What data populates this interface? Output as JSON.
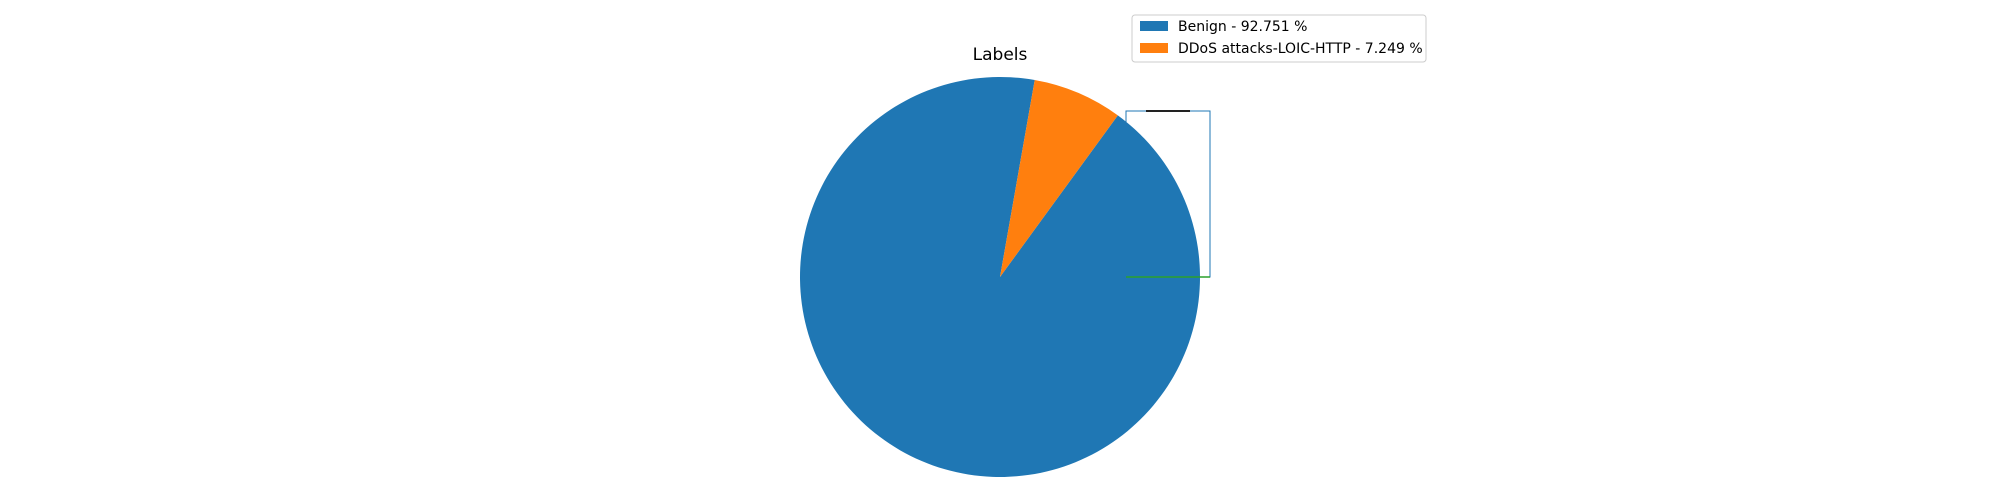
{
  "chart_data": {
    "type": "pie",
    "title": "Labels",
    "slices": [
      {
        "label": "Benign",
        "value": 92.751,
        "color": "#1f77b4"
      },
      {
        "label": "DDoS attacks-LOIC-HTTP",
        "value": 7.249,
        "color": "#ff7f0e"
      }
    ],
    "legend": {
      "placement": "upper-right",
      "entries": [
        {
          "text": "Benign - 92.751 %",
          "color": "#1f77b4"
        },
        {
          "text": "DDoS attacks-LOIC-HTTP - 7.249 %",
          "color": "#ff7f0e"
        }
      ]
    }
  }
}
